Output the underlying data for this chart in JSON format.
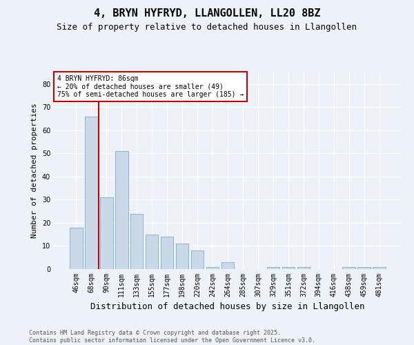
{
  "title": "4, BRYN HYFRYD, LLANGOLLEN, LL20 8BZ",
  "subtitle": "Size of property relative to detached houses in Llangollen",
  "xlabel": "Distribution of detached houses by size in Llangollen",
  "ylabel": "Number of detached properties",
  "categories": [
    "46sqm",
    "68sqm",
    "90sqm",
    "111sqm",
    "133sqm",
    "155sqm",
    "177sqm",
    "198sqm",
    "220sqm",
    "242sqm",
    "264sqm",
    "285sqm",
    "307sqm",
    "329sqm",
    "351sqm",
    "372sqm",
    "394sqm",
    "416sqm",
    "438sqm",
    "459sqm",
    "481sqm"
  ],
  "values": [
    18,
    66,
    31,
    51,
    24,
    15,
    14,
    11,
    8,
    1,
    3,
    0,
    0,
    1,
    1,
    1,
    0,
    0,
    1,
    1,
    1
  ],
  "bar_color": "#c9d9e8",
  "bar_edge_color": "#7aaec8",
  "vline_color": "#cc0000",
  "vline_x": 1.5,
  "annotation_title": "4 BRYN HYFRYD: 86sqm",
  "annotation_line1": "← 20% of detached houses are smaller (49)",
  "annotation_line2": "75% of semi-detached houses are larger (185) →",
  "ylim_max": 85,
  "yticks": [
    0,
    10,
    20,
    30,
    40,
    50,
    60,
    70,
    80
  ],
  "bg_color": "#edf2f9",
  "grid_color": "#ffffff",
  "footer1": "Contains HM Land Registry data © Crown copyright and database right 2025.",
  "footer2": "Contains public sector information licensed under the Open Government Licence v3.0.",
  "title_fs": 11,
  "subtitle_fs": 9,
  "xlabel_fs": 9,
  "ylabel_fs": 8,
  "tick_fs": 7,
  "ann_fs": 7,
  "footer_fs": 6
}
